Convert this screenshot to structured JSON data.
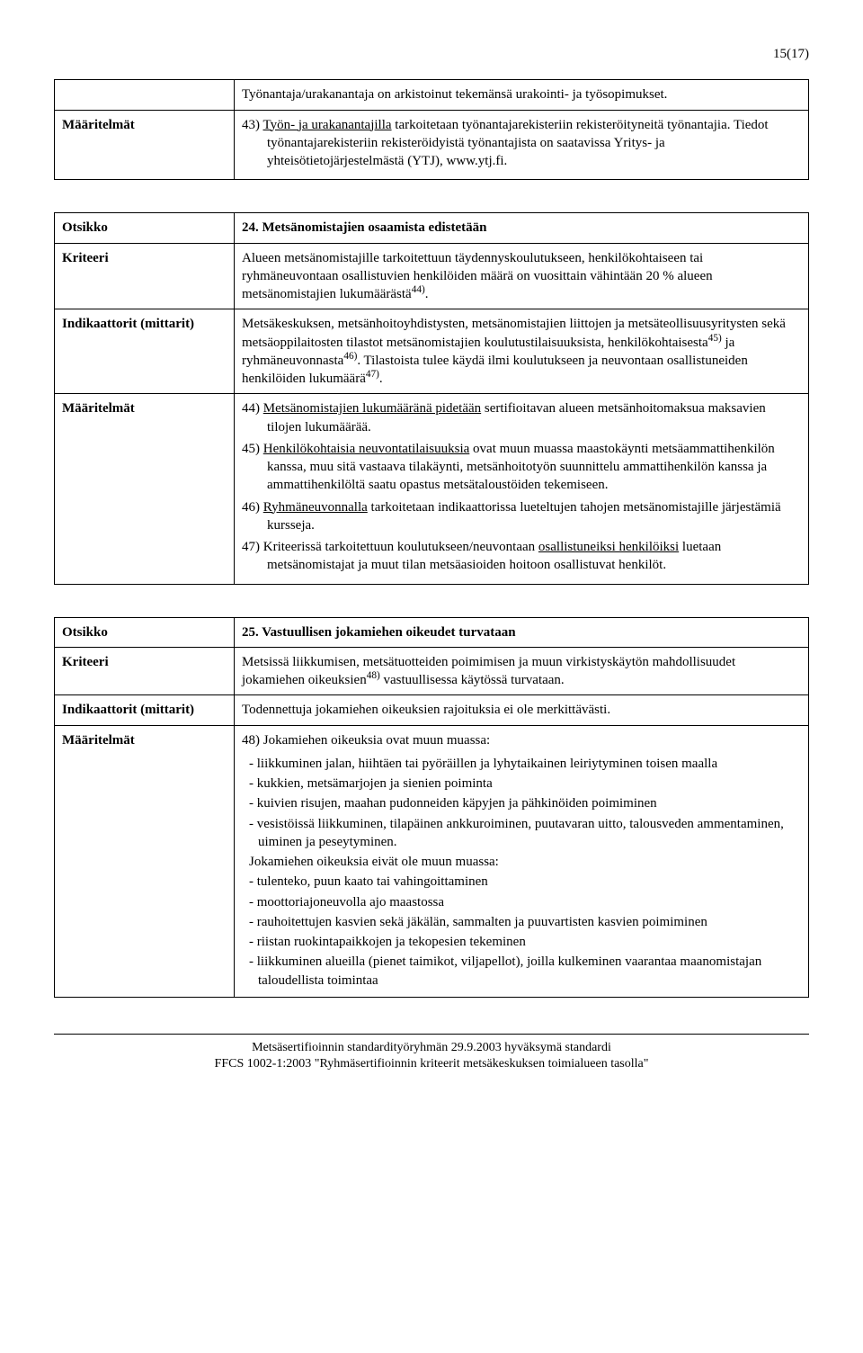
{
  "page_number": "15(17)",
  "box1": {
    "row1": {
      "label": "",
      "content": "Työnantaja/urakanantaja on arkistoinut tekemänsä urakointi- ja työsopimukset."
    },
    "row2": {
      "label": "Määritelmät",
      "num": "43) ",
      "underline": "Työn- ja urakanantajilla",
      "rest1": " tarkoitetaan työnantajarekisteriin rekisteröityneitä työnantajia. Tiedot työnantajarekisteriin rekisteröidyistä työnantajista on saatavissa Yritys- ja yhteisötietojärjestelmästä (YTJ), www.ytj.fi."
    }
  },
  "box2": {
    "otsikko_label": "Otsikko",
    "otsikko_value": "24. Metsänomistajien osaamista edistetään",
    "kriteeri_label": "Kriteeri",
    "kriteeri_text1": "Alueen metsänomistajille tarkoitettuun täydennyskoulutukseen, henkilökohtaiseen tai ryhmäneuvontaan osallistuvien henkilöiden määrä on vuosittain vähintään 20 % alueen metsänomistajien lukumäärästä",
    "kriteeri_sup": "44)",
    "kriteeri_end": ".",
    "indik_label": "Indikaattorit (mittarit)",
    "indik_text1": "Metsäkeskuksen, metsänhoitoyhdistysten, metsänomistajien liittojen ja metsäteollisuusyritysten sekä metsäoppilaitosten tilastot metsänomistajien koulutustilaisuuksista, henkilökohtaisesta",
    "indik_sup1": "45)",
    "indik_text2": " ja ryhmäneuvonnasta",
    "indik_sup2": "46)",
    "indik_text3": ". Tilastoista tulee käydä ilmi koulutukseen ja neuvontaan osallistuneiden henkilöiden lukumäärä",
    "indik_sup3": "47)",
    "indik_text4": ".",
    "maar_label": "Määritelmät",
    "def44_num": "44) ",
    "def44_u": "Metsänomistajien lukumääränä pidetään",
    "def44_rest": " sertifioitavan alueen metsänhoitomaksua maksavien tilojen lukumäärää.",
    "def45_num": "45) ",
    "def45_u": "Henkilökohtaisia neuvontatilaisuuksia",
    "def45_rest": " ovat muun muassa maastokäynti metsäammattihenkilön kanssa, muu sitä vastaava tilakäynti, metsänhoitotyön suunnittelu ammattihenkilön kanssa ja ammattihenkilöltä saatu opastus metsätaloustöiden tekemiseen.",
    "def46_num": "46) ",
    "def46_u": "Ryhmäneuvonnalla",
    "def46_rest": " tarkoitetaan indikaattorissa lueteltujen tahojen metsänomistajille järjestämiä kursseja.",
    "def47_num": "47) ",
    "def47_text1": "Kriteerissä tarkoitettuun koulutukseen/neuvontaan ",
    "def47_u": "osallistuneiksi henkilöiksi",
    "def47_rest": " luetaan metsänomistajat ja muut tilan metsäasioiden hoitoon osallistuvat henkilöt."
  },
  "box3": {
    "otsikko_label": "Otsikko",
    "otsikko_value": "25. Vastuullisen jokamiehen oikeudet turvataan",
    "kriteeri_label": "Kriteeri",
    "kriteeri_text1": "Metsissä liikkumisen, metsätuotteiden poimimisen ja muun virkistyskäytön mahdollisuudet jokamiehen oikeuksien",
    "kriteeri_sup": "48)",
    "kriteeri_text2": " vastuullisessa käytössä turvataan.",
    "indik_label": "Indikaattorit (mittarit)",
    "indik_text": "Todennettuja jokamiehen oikeuksien rajoituksia ei ole merkittävästi.",
    "maar_label": "Määritelmät",
    "def48_num": "48) ",
    "def48_text": "Jokamiehen oikeuksia ovat muun muassa:",
    "list1": [
      "- liikkuminen jalan, hiihtäen tai pyöräillen ja lyhytaikainen leiriytyminen toisen maalla",
      "- kukkien, metsämarjojen ja sienien poiminta",
      "- kuivien risujen, maahan pudonneiden käpyjen ja pähkinöiden poimiminen",
      "- vesistöissä liikkuminen, tilapäinen ankkuroiminen, puutavaran uitto, talousveden ammentaminen, uiminen ja peseytyminen."
    ],
    "mid_text": "Jokamiehen oikeuksia eivät ole muun muassa:",
    "list2": [
      "- tulenteko, puun kaato tai vahingoittaminen",
      "- moottoriajoneuvolla ajo maastossa",
      "- rauhoitettujen kasvien sekä jäkälän, sammalten ja puuvartisten kasvien poimiminen",
      "- riistan ruokintapaikkojen ja tekopesien tekeminen",
      "- liikkuminen alueilla (pienet taimikot, viljapellot), joilla kulkeminen vaarantaa maanomistajan taloudellista toimintaa"
    ]
  },
  "footer": {
    "line1": "Metsäsertifioinnin standardityöryhmän 29.9.2003 hyväksymä standardi",
    "line2": "FFCS 1002-1:2003 \"Ryhmäsertifioinnin kriteerit metsäkeskuksen toimialueen tasolla\""
  }
}
